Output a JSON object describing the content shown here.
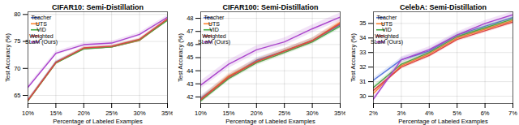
{
  "chart_data": [
    {
      "type": "line",
      "title": "CIFAR10: Semi-Distillation",
      "xlabel": "Percentage of Labeled Examples",
      "ylabel": "Test Accuracy (%)",
      "x": [
        10,
        15,
        20,
        25,
        30,
        35
      ],
      "xlim": [
        10,
        35
      ],
      "xticks": [
        {
          "value": 10,
          "label": "10%"
        },
        {
          "value": 15,
          "label": "15%"
        },
        {
          "value": 20,
          "label": "20%"
        },
        {
          "value": 25,
          "label": "25%"
        },
        {
          "value": 30,
          "label": "30%"
        },
        {
          "value": 35,
          "label": "35%"
        }
      ],
      "ylim": [
        63.5,
        80.5
      ],
      "yticks": [
        65,
        70,
        75,
        80
      ],
      "grid": true,
      "legend": "upper left",
      "series": [
        {
          "name": "Teacher",
          "color": "#5577dd",
          "values": [
            64.1,
            71.2,
            73.7,
            74.0,
            75.2,
            79.1
          ],
          "spread": 0.25
        },
        {
          "name": "UTS",
          "color": "#ff8833",
          "values": [
            64.0,
            71.0,
            73.7,
            74.0,
            75.2,
            79.0
          ],
          "spread": 0.25
        },
        {
          "name": "VID",
          "color": "#44aa44",
          "values": [
            64.0,
            71.0,
            73.6,
            74.0,
            75.3,
            78.9
          ],
          "spread": 0.25
        },
        {
          "name": "Weighted",
          "color": "#dd4444",
          "values": [
            64.1,
            71.1,
            73.8,
            74.1,
            75.4,
            79.2
          ],
          "spread": 0.25
        },
        {
          "name": "SLaM (Ours)",
          "color": "#aa44cc",
          "values": [
            66.5,
            72.8,
            74.4,
            74.7,
            76.3,
            79.5
          ],
          "spread": 0.35
        }
      ]
    },
    {
      "type": "line",
      "title": "CIFAR100: Semi-Distillation",
      "xlabel": "Percentage of Labeled Examples",
      "ylabel": "Test Accuracy (%)",
      "x": [
        10,
        15,
        20,
        25,
        30,
        35
      ],
      "xlim": [
        10,
        35
      ],
      "xticks": [
        {
          "value": 10,
          "label": "10%"
        },
        {
          "value": 15,
          "label": "15%"
        },
        {
          "value": 20,
          "label": "20%"
        },
        {
          "value": 25,
          "label": "25%"
        },
        {
          "value": 30,
          "label": "30%"
        },
        {
          "value": 35,
          "label": "35%"
        }
      ],
      "ylim": [
        41.5,
        48.5
      ],
      "yticks": [
        42,
        43,
        44,
        45,
        46,
        47,
        48
      ],
      "grid": true,
      "legend": "upper left",
      "series": [
        {
          "name": "Teacher",
          "color": "#5577dd",
          "values": [
            41.9,
            43.5,
            44.8,
            45.5,
            46.3,
            47.5
          ],
          "spread": 0.2
        },
        {
          "name": "UTS",
          "color": "#ff8833",
          "values": [
            41.8,
            43.6,
            44.7,
            45.5,
            46.3,
            47.7
          ],
          "spread": 0.2
        },
        {
          "name": "VID",
          "color": "#44aa44",
          "values": [
            41.7,
            43.4,
            44.6,
            45.4,
            46.2,
            47.4
          ],
          "spread": 0.2
        },
        {
          "name": "Weighted",
          "color": "#dd4444",
          "values": [
            41.8,
            43.5,
            44.7,
            45.5,
            46.3,
            47.6
          ],
          "spread": 0.2
        },
        {
          "name": "SLaM (Ours)",
          "color": "#aa44cc",
          "values": [
            42.9,
            44.5,
            45.6,
            46.2,
            47.2,
            48.1
          ],
          "spread": 0.3
        }
      ]
    },
    {
      "type": "line",
      "title": "CelebA: Semi-Distillation",
      "xlabel": "Percentage of Labeled Examples",
      "ylabel": "Test Accuracy (%)",
      "x": [
        2,
        3,
        4,
        5,
        6,
        7
      ],
      "xlim": [
        2,
        7
      ],
      "xticks": [
        {
          "value": 2,
          "label": "2%"
        },
        {
          "value": 3,
          "label": "3%"
        },
        {
          "value": 4,
          "label": "4%"
        },
        {
          "value": 5,
          "label": "5%"
        },
        {
          "value": 6,
          "label": "6%"
        },
        {
          "value": 7,
          "label": "7%"
        }
      ],
      "ylim": [
        29.5,
        35.8
      ],
      "yticks": [
        30,
        31,
        32,
        33,
        34,
        35
      ],
      "grid": true,
      "legend": "upper left",
      "series": [
        {
          "name": "Teacher",
          "color": "#5577dd",
          "values": [
            31.1,
            32.5,
            33.1,
            34.2,
            34.8,
            35.4
          ],
          "spread": 0.15
        },
        {
          "name": "UTS",
          "color": "#ff8833",
          "values": [
            30.2,
            32.1,
            32.9,
            34.0,
            34.6,
            35.2
          ],
          "spread": 0.15
        },
        {
          "name": "VID",
          "color": "#44aa44",
          "values": [
            30.6,
            32.2,
            33.0,
            34.1,
            34.7,
            35.3
          ],
          "spread": 0.15
        },
        {
          "name": "Weighted",
          "color": "#dd4444",
          "values": [
            30.4,
            32.0,
            32.8,
            33.9,
            34.5,
            35.1
          ],
          "spread": 0.15
        },
        {
          "name": "SLaM (Ours)",
          "color": "#aa44cc",
          "values": [
            29.8,
            32.5,
            33.2,
            34.2,
            35.0,
            35.6
          ],
          "spread": 0.2
        }
      ]
    }
  ]
}
